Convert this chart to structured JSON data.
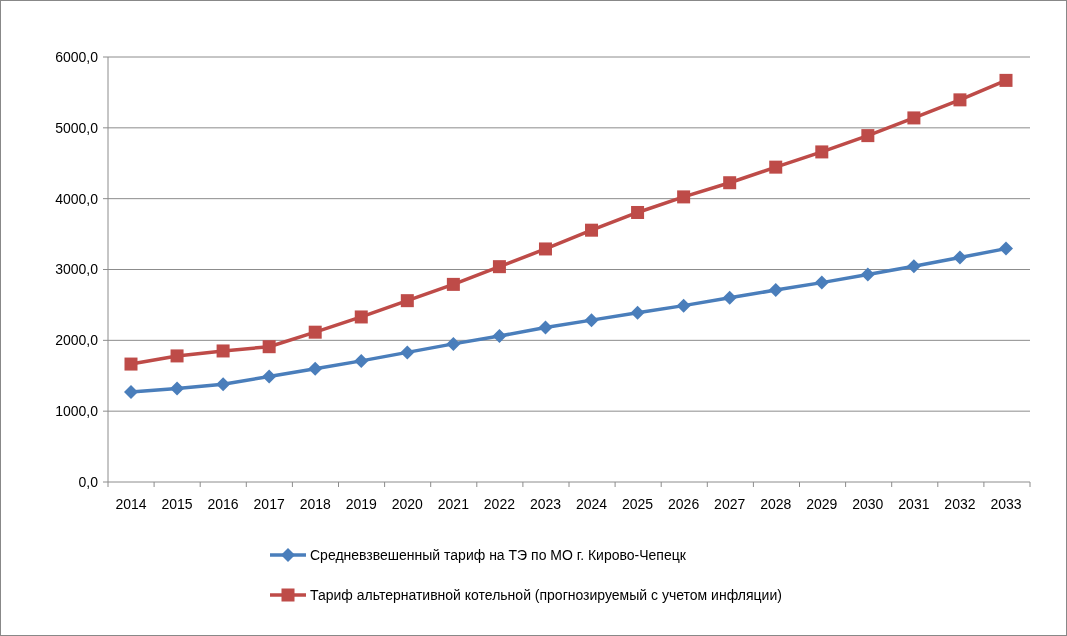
{
  "chart_data": {
    "type": "line",
    "categories": [
      "2014",
      "2015",
      "2016",
      "2017",
      "2018",
      "2019",
      "2020",
      "2021",
      "2022",
      "2023",
      "2024",
      "2025",
      "2026",
      "2027",
      "2028",
      "2029",
      "2030",
      "2031",
      "2032",
      "2033"
    ],
    "series": [
      {
        "name": "Средневзвешенный  тариф на ТЭ  по МО г. Кирово-Чепецк",
        "color": "#4a7ebb",
        "marker": "diamond",
        "values": [
          1270,
          1320,
          1380,
          1490,
          1600,
          1710,
          1830,
          1950,
          2060,
          2180,
          2285,
          2390,
          2490,
          2600,
          2710,
          2815,
          2930,
          3045,
          3170,
          3295
        ]
      },
      {
        "name": "Тариф альтернативной  котельной (прогнозируемый с учетом инфляции)",
        "color": "#be4b48",
        "marker": "square",
        "values": [
          1665,
          1780,
          1850,
          1910,
          2115,
          2330,
          2560,
          2790,
          3040,
          3290,
          3555,
          3805,
          4025,
          4225,
          4445,
          4660,
          4890,
          5140,
          5395,
          5670
        ]
      }
    ],
    "ylim": [
      0,
      6000
    ],
    "yticks": [
      {
        "value": 0,
        "label": "0,0"
      },
      {
        "value": 1000,
        "label": "1000,0"
      },
      {
        "value": 2000,
        "label": "2000,0"
      },
      {
        "value": 3000,
        "label": "3000,0"
      },
      {
        "value": 4000,
        "label": "4000,0"
      },
      {
        "value": 5000,
        "label": "5000,0"
      },
      {
        "value": 6000,
        "label": "6000,0"
      }
    ],
    "grid": "y",
    "legend": "bottom",
    "line_style": "solid"
  }
}
